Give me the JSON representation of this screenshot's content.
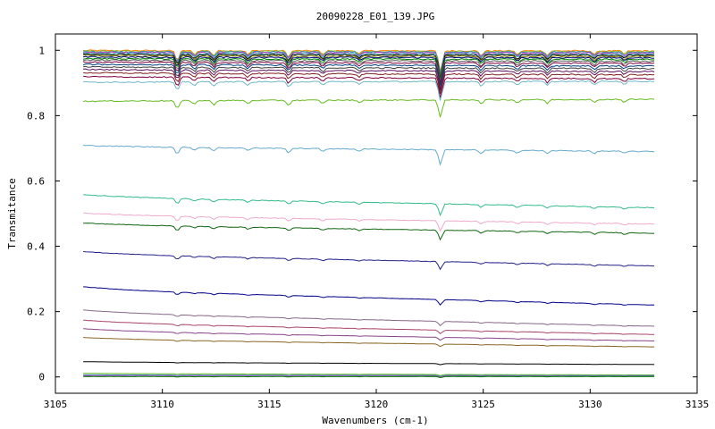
{
  "chart_data": {
    "type": "line",
    "title": "20090228_E01_139.JPG",
    "xlabel": "Wavenumbers (cm-1)",
    "ylabel": "Transmitance",
    "xlim": [
      3105,
      3135
    ],
    "ylim": [
      -0.05,
      1.05
    ],
    "x_ticks": [
      "3105",
      "3110",
      "3115",
      "3120",
      "3125",
      "3130",
      "3135"
    ],
    "y_ticks": [
      "0",
      "0.2",
      "0.4",
      "0.6",
      "0.8",
      "1"
    ],
    "grid": false,
    "legend": "none",
    "x_range_data": [
      3106.3,
      3133.0
    ],
    "absorption_lines": [
      {
        "x": 3110.7,
        "strength": 0.03
      },
      {
        "x": 3111.5,
        "strength": 0.012
      },
      {
        "x": 3112.4,
        "strength": 0.015
      },
      {
        "x": 3114.0,
        "strength": 0.012
      },
      {
        "x": 3115.9,
        "strength": 0.018
      },
      {
        "x": 3117.5,
        "strength": 0.012
      },
      {
        "x": 3119.2,
        "strength": 0.01
      },
      {
        "x": 3123.0,
        "strength": 0.065
      },
      {
        "x": 3124.9,
        "strength": 0.015
      },
      {
        "x": 3126.6,
        "strength": 0.012
      },
      {
        "x": 3128.0,
        "strength": 0.014
      },
      {
        "x": 3130.2,
        "strength": 0.012
      },
      {
        "x": 3131.6,
        "strength": 0.01
      }
    ],
    "series": [
      {
        "baseline_start": 0.999,
        "baseline_end": 0.998,
        "color": "#ff7f00"
      },
      {
        "baseline_start": 0.997,
        "baseline_end": 0.996,
        "color": "#7fbf3f"
      },
      {
        "baseline_start": 0.995,
        "baseline_end": 0.994,
        "color": "#3f7fbf"
      },
      {
        "baseline_start": 0.993,
        "baseline_end": 0.991,
        "color": "#bf3fbf"
      },
      {
        "baseline_start": 0.99,
        "baseline_end": 0.988,
        "color": "#3fbfbf"
      },
      {
        "baseline_start": 0.987,
        "baseline_end": 0.985,
        "color": "#000000"
      },
      {
        "baseline_start": 0.983,
        "baseline_end": 0.981,
        "color": "#7f7f00"
      },
      {
        "baseline_start": 0.979,
        "baseline_end": 0.977,
        "color": "#00007f"
      },
      {
        "baseline_start": 0.974,
        "baseline_end": 0.972,
        "color": "#007f00"
      },
      {
        "baseline_start": 0.969,
        "baseline_end": 0.966,
        "color": "#5f5f5f"
      },
      {
        "baseline_start": 0.963,
        "baseline_end": 0.96,
        "color": "#7f003f"
      },
      {
        "baseline_start": 0.956,
        "baseline_end": 0.952,
        "color": "#003f7f"
      },
      {
        "baseline_start": 0.948,
        "baseline_end": 0.944,
        "color": "#3f3f3f"
      },
      {
        "baseline_start": 0.94,
        "baseline_end": 0.935,
        "color": "#5f0f5f"
      },
      {
        "baseline_start": 0.93,
        "baseline_end": 0.925,
        "color": "#7f1f1f"
      },
      {
        "baseline_start": 0.918,
        "baseline_end": 0.913,
        "color": "#800040"
      },
      {
        "baseline_start": 0.903,
        "baseline_end": 0.905,
        "color": "#6fb7c7"
      },
      {
        "baseline_start": 0.845,
        "baseline_end": 0.85,
        "color": "#66bb22"
      },
      {
        "baseline_start": 0.705,
        "baseline_end": 0.69,
        "color": "#66aacc"
      },
      {
        "baseline_start": 0.55,
        "baseline_end": 0.518,
        "color": "#33bb88"
      },
      {
        "baseline_start": 0.495,
        "baseline_end": 0.468,
        "color": "#eeaacc"
      },
      {
        "baseline_start": 0.465,
        "baseline_end": 0.44,
        "color": "#116611"
      },
      {
        "baseline_start": 0.375,
        "baseline_end": 0.34,
        "color": "#222288"
      },
      {
        "baseline_start": 0.265,
        "baseline_end": 0.22,
        "color": "#000088"
      },
      {
        "baseline_start": 0.195,
        "baseline_end": 0.155,
        "color": "#886688"
      },
      {
        "baseline_start": 0.165,
        "baseline_end": 0.13,
        "color": "#aa4466"
      },
      {
        "baseline_start": 0.14,
        "baseline_end": 0.11,
        "color": "#884488"
      },
      {
        "baseline_start": 0.115,
        "baseline_end": 0.092,
        "color": "#886622"
      },
      {
        "baseline_start": 0.045,
        "baseline_end": 0.038,
        "color": "#000000"
      },
      {
        "baseline_start": 0.01,
        "baseline_end": 0.006,
        "color": "#66bb22"
      },
      {
        "baseline_start": 0.006,
        "baseline_end": 0.004,
        "color": "#3f7fbf"
      },
      {
        "baseline_start": 0.003,
        "baseline_end": 0.002,
        "color": "#bf3fbf"
      },
      {
        "baseline_start": 0.001,
        "baseline_end": 0.001,
        "color": "#007f00"
      }
    ]
  }
}
